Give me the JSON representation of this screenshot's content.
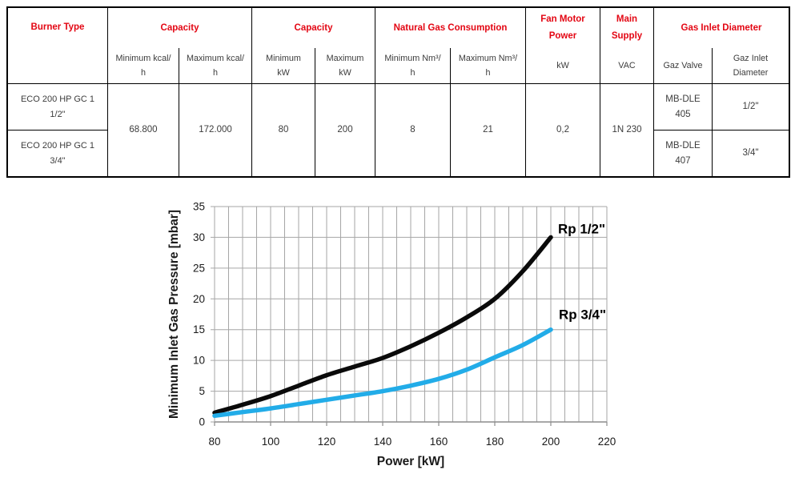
{
  "colors": {
    "table_border": "#000000",
    "table_header_red": "#e30613",
    "table_text": "#3c3c3c",
    "grid_line": "#a6a6a6",
    "axis_line": "#8c8c8c",
    "tick_text": "#1a1a1a",
    "curve_black": "#0a0a0a",
    "curve_cyan": "#22ace8"
  },
  "table": {
    "groups": [
      {
        "label": "Burner Type"
      },
      {
        "label": "Capacity"
      },
      {
        "label": "Capacity"
      },
      {
        "label": "Natural Gas Consumption"
      },
      {
        "label": "Fan Motor\nPower"
      },
      {
        "label": "Main\nSupply"
      },
      {
        "label": "Gas Inlet Diameter"
      }
    ],
    "subheaders": [
      "Minimum kcal/\nh",
      "Maximum kcal/\nh",
      "Minimum\nkW",
      "Maximum\nkW",
      "Minimum Nm³/\nh",
      "Maximum Nm³/\nh",
      "kW",
      "VAC",
      "Gaz Valve",
      "Gaz Inlet\nDiameter"
    ],
    "rows": [
      {
        "burner": "ECO 200 HP GC 1\n1/2\"",
        "gas_valve": "MB-DLE\n405",
        "gas_inlet_diameter": "1/2\""
      },
      {
        "burner": "ECO 200 HP GC 1\n3/4\"",
        "gas_valve": "MB-DLE\n407",
        "gas_inlet_diameter": "3/4\""
      }
    ],
    "shared": {
      "min_kcal_h": "68.800",
      "max_kcal_h": "172.000",
      "min_kw": "80",
      "max_kw": "200",
      "min_nm3_h": "8",
      "max_nm3_h": "21",
      "fan_motor_kw": "0,2",
      "main_supply_vac": "1N 230"
    }
  },
  "chart_data": {
    "type": "line",
    "title": "",
    "xlabel": "Power [kW]",
    "ylabel": "Minimum Inlet Gas Pressure [mbar]",
    "xlim": [
      80,
      220
    ],
    "ylim": [
      0,
      35
    ],
    "x_major_ticks": [
      80,
      100,
      120,
      140,
      160,
      180,
      200,
      220
    ],
    "y_major_ticks": [
      0,
      5,
      10,
      15,
      20,
      25,
      30,
      35
    ],
    "x_minor_step": 5,
    "grid": true,
    "legend_position": "inline-end-labels",
    "series": [
      {
        "name": "Rp 1/2\"",
        "color": "#0a0a0a",
        "x": [
          80,
          90,
          100,
          110,
          120,
          130,
          140,
          150,
          160,
          170,
          180,
          190,
          200
        ],
        "y": [
          1.5,
          2.8,
          4.2,
          5.9,
          7.6,
          9.0,
          10.4,
          12.3,
          14.5,
          17.0,
          20.0,
          24.5,
          30.0
        ]
      },
      {
        "name": "Rp 3/4\"",
        "color": "#22ace8",
        "x": [
          80,
          90,
          100,
          110,
          120,
          130,
          140,
          150,
          160,
          170,
          180,
          190,
          200
        ],
        "y": [
          1.0,
          1.6,
          2.2,
          2.9,
          3.6,
          4.3,
          5.0,
          5.9,
          7.0,
          8.5,
          10.5,
          12.5,
          15.0
        ]
      }
    ]
  }
}
